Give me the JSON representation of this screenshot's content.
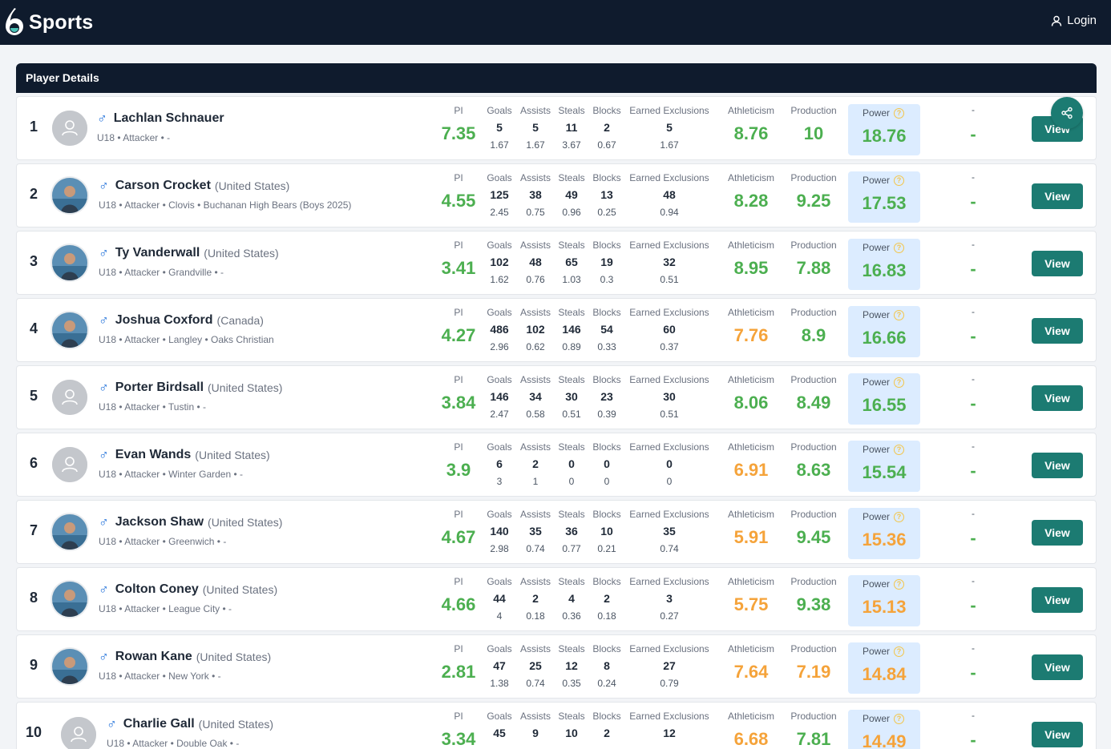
{
  "header": {
    "brand": "Sports",
    "login_label": "Login"
  },
  "panel": {
    "title": "Player Details"
  },
  "labels": {
    "pi": "PI",
    "goals": "Goals",
    "assists": "Assists",
    "steals": "Steals",
    "blocks": "Blocks",
    "ee": "Earned Exclusions",
    "ath": "Athleticism",
    "prod": "Production",
    "power": "Power",
    "dash": "-",
    "view": "View"
  },
  "colors": {
    "good": "#4caf50",
    "warn": "#f5a33a",
    "accent": "#1c7b72",
    "nav": "#0f1b2d"
  },
  "players": [
    {
      "rank": "1",
      "name": "Lachlan Schnauer",
      "country": "",
      "meta": "U18 • Attacker • -",
      "pi": "7.35",
      "goals": "5",
      "goals_avg": "1.67",
      "assists": "5",
      "assists_avg": "1.67",
      "steals": "11",
      "steals_avg": "3.67",
      "blocks": "2",
      "blocks_avg": "0.67",
      "ee": "5",
      "ee_avg": "1.67",
      "ath": "8.76",
      "ath_color": "green",
      "prod": "10",
      "prod_color": "green",
      "power": "18.76",
      "power_color": "green",
      "dash_top": "-",
      "dash_big": "-",
      "photo": false
    },
    {
      "rank": "2",
      "name": "Carson Crocket",
      "country": "(United States)",
      "meta": "U18 • Attacker • Clovis • Buchanan High Bears (Boys 2025)",
      "pi": "4.55",
      "goals": "125",
      "goals_avg": "2.45",
      "assists": "38",
      "assists_avg": "0.75",
      "steals": "49",
      "steals_avg": "0.96",
      "blocks": "13",
      "blocks_avg": "0.25",
      "ee": "48",
      "ee_avg": "0.94",
      "ath": "8.28",
      "ath_color": "green",
      "prod": "9.25",
      "prod_color": "green",
      "power": "17.53",
      "power_color": "green",
      "dash_top": "-",
      "dash_big": "-",
      "photo": true
    },
    {
      "rank": "3",
      "name": "Ty Vanderwall",
      "country": "(United States)",
      "meta": "U18 • Attacker • Grandville • -",
      "pi": "3.41",
      "goals": "102",
      "goals_avg": "1.62",
      "assists": "48",
      "assists_avg": "0.76",
      "steals": "65",
      "steals_avg": "1.03",
      "blocks": "19",
      "blocks_avg": "0.3",
      "ee": "32",
      "ee_avg": "0.51",
      "ath": "8.95",
      "ath_color": "green",
      "prod": "7.88",
      "prod_color": "green",
      "power": "16.83",
      "power_color": "green",
      "dash_top": "-",
      "dash_big": "-",
      "photo": true
    },
    {
      "rank": "4",
      "name": "Joshua Coxford",
      "country": "(Canada)",
      "meta": "U18 • Attacker • Langley • Oaks Christian",
      "pi": "4.27",
      "goals": "486",
      "goals_avg": "2.96",
      "assists": "102",
      "assists_avg": "0.62",
      "steals": "146",
      "steals_avg": "0.89",
      "blocks": "54",
      "blocks_avg": "0.33",
      "ee": "60",
      "ee_avg": "0.37",
      "ath": "7.76",
      "ath_color": "orange",
      "prod": "8.9",
      "prod_color": "green",
      "power": "16.66",
      "power_color": "green",
      "dash_top": "-",
      "dash_big": "-",
      "photo": true
    },
    {
      "rank": "5",
      "name": "Porter Birdsall",
      "country": "(United States)",
      "meta": "U18 • Attacker • Tustin • -",
      "pi": "3.84",
      "goals": "146",
      "goals_avg": "2.47",
      "assists": "34",
      "assists_avg": "0.58",
      "steals": "30",
      "steals_avg": "0.51",
      "blocks": "23",
      "blocks_avg": "0.39",
      "ee": "30",
      "ee_avg": "0.51",
      "ath": "8.06",
      "ath_color": "green",
      "prod": "8.49",
      "prod_color": "green",
      "power": "16.55",
      "power_color": "green",
      "dash_top": "-",
      "dash_big": "-",
      "photo": false
    },
    {
      "rank": "6",
      "name": "Evan Wands",
      "country": "(United States)",
      "meta": "U18 • Attacker • Winter Garden • -",
      "pi": "3.9",
      "goals": "6",
      "goals_avg": "3",
      "assists": "2",
      "assists_avg": "1",
      "steals": "0",
      "steals_avg": "0",
      "blocks": "0",
      "blocks_avg": "0",
      "ee": "0",
      "ee_avg": "0",
      "ath": "6.91",
      "ath_color": "orange",
      "prod": "8.63",
      "prod_color": "green",
      "power": "15.54",
      "power_color": "green",
      "dash_top": "-",
      "dash_big": "-",
      "photo": false
    },
    {
      "rank": "7",
      "name": "Jackson Shaw",
      "country": "(United States)",
      "meta": "U18 • Attacker • Greenwich • -",
      "pi": "4.67",
      "goals": "140",
      "goals_avg": "2.98",
      "assists": "35",
      "assists_avg": "0.74",
      "steals": "36",
      "steals_avg": "0.77",
      "blocks": "10",
      "blocks_avg": "0.21",
      "ee": "35",
      "ee_avg": "0.74",
      "ath": "5.91",
      "ath_color": "orange",
      "prod": "9.45",
      "prod_color": "green",
      "power": "15.36",
      "power_color": "orange",
      "dash_top": "-",
      "dash_big": "-",
      "photo": true
    },
    {
      "rank": "8",
      "name": "Colton Coney",
      "country": "(United States)",
      "meta": "U18 • Attacker • League City • -",
      "pi": "4.66",
      "goals": "44",
      "goals_avg": "4",
      "assists": "2",
      "assists_avg": "0.18",
      "steals": "4",
      "steals_avg": "0.36",
      "blocks": "2",
      "blocks_avg": "0.18",
      "ee": "3",
      "ee_avg": "0.27",
      "ath": "5.75",
      "ath_color": "orange",
      "prod": "9.38",
      "prod_color": "green",
      "power": "15.13",
      "power_color": "orange",
      "dash_top": "-",
      "dash_big": "-",
      "photo": true
    },
    {
      "rank": "9",
      "name": "Rowan Kane",
      "country": "(United States)",
      "meta": "U18 • Attacker • New York • -",
      "pi": "2.81",
      "goals": "47",
      "goals_avg": "1.38",
      "assists": "25",
      "assists_avg": "0.74",
      "steals": "12",
      "steals_avg": "0.35",
      "blocks": "8",
      "blocks_avg": "0.24",
      "ee": "27",
      "ee_avg": "0.79",
      "ath": "7.64",
      "ath_color": "orange",
      "prod": "7.19",
      "prod_color": "orange",
      "power": "14.84",
      "power_color": "orange",
      "dash_top": "-",
      "dash_big": "-",
      "photo": true
    },
    {
      "rank": "10",
      "name": "Charlie Gall",
      "country": "(United States)",
      "meta": "U18 • Attacker • Double Oak • -",
      "pi": "3.34",
      "goals": "45",
      "goals_avg": "",
      "assists": "9",
      "assists_avg": "",
      "steals": "10",
      "steals_avg": "",
      "blocks": "2",
      "blocks_avg": "",
      "ee": "12",
      "ee_avg": "",
      "ath": "6.68",
      "ath_color": "orange",
      "prod": "7.81",
      "prod_color": "green",
      "power": "14.49",
      "power_color": "orange",
      "dash_top": "-",
      "dash_big": "-",
      "photo": false
    }
  ]
}
